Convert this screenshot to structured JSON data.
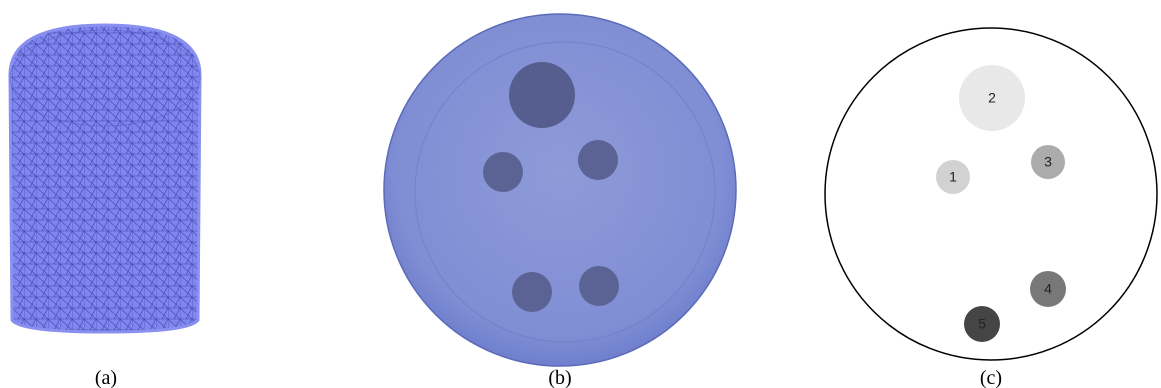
{
  "panels": [
    {
      "caption": "(a)"
    },
    {
      "caption": "(b)"
    },
    {
      "caption": "(c)",
      "regions": [
        {
          "label": "1"
        },
        {
          "label": "2"
        },
        {
          "label": "3"
        },
        {
          "label": "4"
        },
        {
          "label": "5"
        }
      ]
    }
  ]
}
